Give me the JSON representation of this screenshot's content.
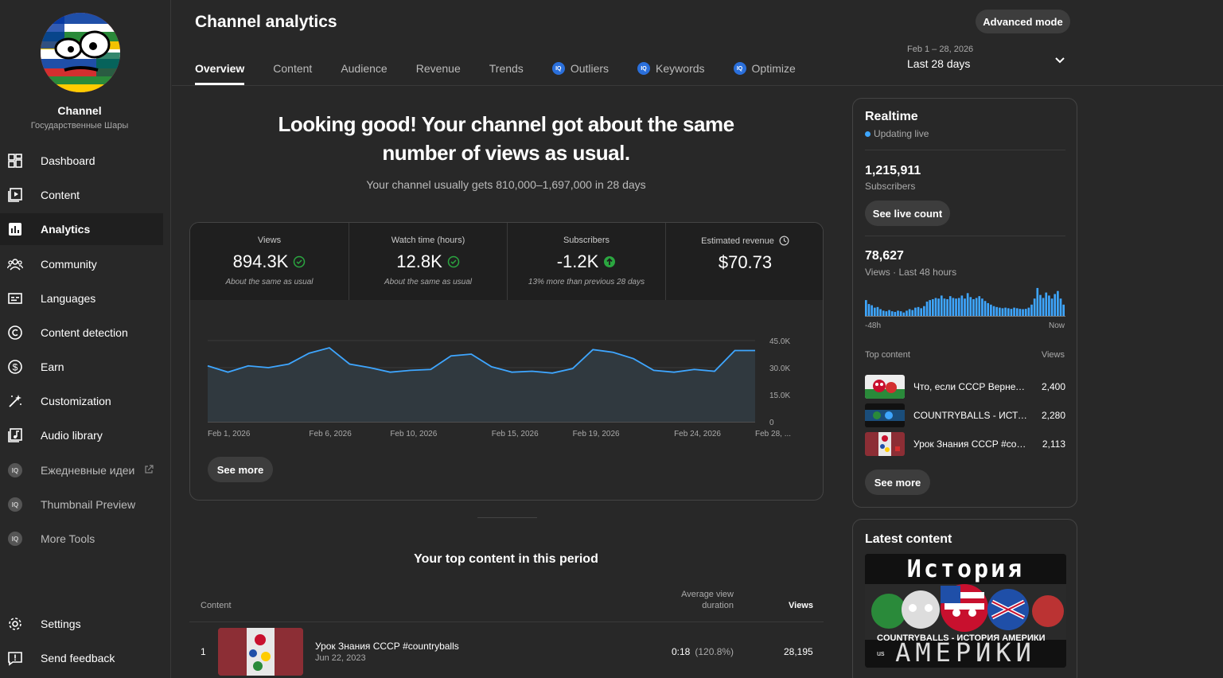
{
  "channel": {
    "name": "Channel",
    "handle": "Государственные Шары"
  },
  "sidebar": {
    "items": [
      {
        "label": "Dashboard"
      },
      {
        "label": "Content"
      },
      {
        "label": "Analytics"
      },
      {
        "label": "Community"
      },
      {
        "label": "Languages"
      },
      {
        "label": "Content detection"
      },
      {
        "label": "Earn"
      },
      {
        "label": "Customization"
      },
      {
        "label": "Audio library"
      },
      {
        "label": "Ежедневные идеи"
      },
      {
        "label": "Thumbnail Preview"
      },
      {
        "label": "More Tools"
      },
      {
        "label": "Settings"
      },
      {
        "label": "Send feedback"
      }
    ],
    "vq_badge": "IQ"
  },
  "header": {
    "title": "Channel analytics",
    "advanced_label": "Advanced mode",
    "tabs": [
      {
        "label": "Overview"
      },
      {
        "label": "Content"
      },
      {
        "label": "Audience"
      },
      {
        "label": "Revenue"
      },
      {
        "label": "Trends"
      },
      {
        "label": "Outliers"
      },
      {
        "label": "Keywords"
      },
      {
        "label": "Optimize"
      }
    ],
    "date_range": "Feb 1 – 28, 2026",
    "period": "Last 28 days"
  },
  "hero": {
    "headline": "Looking good! Your channel got about the same number of views as usual.",
    "subtext": "Your channel usually gets 810,000–1,697,000 in 28 days"
  },
  "metrics": [
    {
      "label": "Views",
      "value": "894.3K",
      "note": "About the same as usual"
    },
    {
      "label": "Watch time (hours)",
      "value": "12.8K",
      "note": "About the same as usual"
    },
    {
      "label": "Subscribers",
      "value": "-1.2K",
      "note": "13% more than previous 28 days"
    },
    {
      "label": "Estimated revenue",
      "value": "$70.73",
      "note": ""
    }
  ],
  "chart_data": {
    "type": "area",
    "x": [
      "Feb 1",
      "Feb 2",
      "Feb 3",
      "Feb 4",
      "Feb 5",
      "Feb 6",
      "Feb 7",
      "Feb 8",
      "Feb 9",
      "Feb 10",
      "Feb 11",
      "Feb 12",
      "Feb 13",
      "Feb 14",
      "Feb 15",
      "Feb 16",
      "Feb 17",
      "Feb 18",
      "Feb 19",
      "Feb 20",
      "Feb 21",
      "Feb 22",
      "Feb 23",
      "Feb 24",
      "Feb 25",
      "Feb 26",
      "Feb 27",
      "Feb 28"
    ],
    "values": [
      31000,
      27500,
      31000,
      30000,
      32000,
      38000,
      41000,
      32000,
      30000,
      27500,
      28500,
      29000,
      36500,
      37500,
      30500,
      27500,
      28000,
      27000,
      29500,
      40000,
      38500,
      35000,
      28500,
      27500,
      29000,
      28000,
      39500,
      39500
    ],
    "tick_labels": [
      "Feb 1, 2026",
      "Feb 6, 2026",
      "Feb 10, 2026",
      "Feb 15, 2026",
      "Feb 19, 2026",
      "Feb 24, 2026",
      "Feb 28, ..."
    ],
    "tick_index": [
      0,
      5,
      9,
      14,
      18,
      23,
      27
    ],
    "y_ticks": [
      "45.0K",
      "30.0K",
      "15.0K",
      "0"
    ],
    "ylim": [
      0,
      45000
    ],
    "color": "#3ea6ff",
    "see_more": "See more"
  },
  "top_content": {
    "title": "Your top content in this period",
    "col_content": "Content",
    "col_avg": "Average view duration",
    "col_views": "Views",
    "rows": [
      {
        "rank": "1",
        "title": "Урок Знания СССР #countryballs",
        "date": "Jun 22, 2023",
        "avg": "0:18",
        "avg_pct": "(120.8%)",
        "views": "28,195"
      }
    ]
  },
  "realtime": {
    "title": "Realtime",
    "live": "Updating live",
    "subs_value": "1,215,911",
    "subs_label": "Subscribers",
    "live_count_btn": "See live count",
    "views_value": "78,627",
    "views_label": "Views · Last 48 hours",
    "bars": [
      0.55,
      0.42,
      0.38,
      0.3,
      0.32,
      0.25,
      0.2,
      0.18,
      0.22,
      0.18,
      0.16,
      0.2,
      0.18,
      0.14,
      0.2,
      0.25,
      0.22,
      0.3,
      0.32,
      0.28,
      0.35,
      0.5,
      0.55,
      0.58,
      0.62,
      0.6,
      0.7,
      0.6,
      0.58,
      0.68,
      0.62,
      0.6,
      0.62,
      0.7,
      0.6,
      0.78,
      0.65,
      0.58,
      0.62,
      0.68,
      0.6,
      0.52,
      0.45,
      0.4,
      0.35,
      0.32,
      0.3,
      0.28,
      0.3,
      0.28,
      0.26,
      0.3,
      0.28,
      0.26,
      0.25,
      0.26,
      0.3,
      0.4,
      0.6,
      0.95,
      0.72,
      0.62,
      0.8,
      0.7,
      0.6,
      0.75,
      0.85,
      0.6,
      0.4
    ],
    "axis_left": "-48h",
    "axis_right": "Now",
    "top_label": "Top content",
    "top_views": "Views",
    "items": [
      {
        "title": "Что, если СССР Вернетс...",
        "views": "2,400"
      },
      {
        "title": "COUNTRYBALLS - ИСТО...",
        "views": "2,280"
      },
      {
        "title": "Урок Знания СССР #cou...",
        "views": "2,113"
      }
    ],
    "see_more": "See more"
  },
  "latest": {
    "title": "Latest content",
    "thumb_top": "История",
    "thumb_bottom": "АМЕРИКИ",
    "caption": "COUNTRYBALLS - ИСТОРИЯ АМЕРИКИ",
    "caption2": "us"
  }
}
